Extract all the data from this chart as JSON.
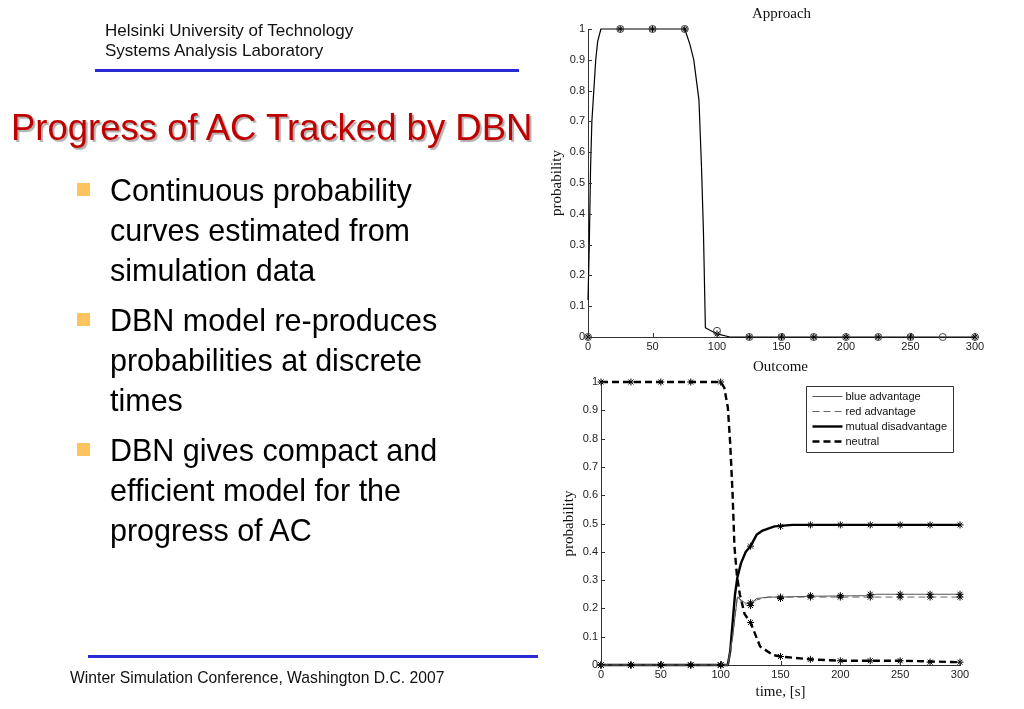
{
  "chart_data": [
    {
      "type": "other",
      "title": "Progress of AC Tracked by DBN",
      "annotations": [
        "Helsinki University of Technology",
        "Systems Analysis Laboratory",
        "Continuous probability curves estimated from simulation data",
        "DBN model re-produces probabilities at discrete times",
        "DBN gives compact and efficient model for the progress of AC",
        "Winter Simulation Conference, Washington D.C. 2007"
      ]
    },
    {
      "type": "line",
      "title": "Approach",
      "ylabel": "probability",
      "xlim": [
        0,
        300
      ],
      "ylim": [
        0,
        1
      ],
      "xticks": [
        0,
        50,
        100,
        150,
        200,
        250,
        300
      ],
      "yticks": [
        0,
        0.1,
        0.2,
        0.3,
        0.4,
        0.5,
        0.6,
        0.7,
        0.8,
        0.9,
        1
      ],
      "series": [
        {
          "type": "line",
          "color": "#000000",
          "marker": "none",
          "line_style": "solid",
          "x": [
            0,
            1,
            2,
            3,
            4.5,
            6,
            7.5,
            10,
            75,
            79,
            82,
            86,
            88,
            89.5,
            91,
            100,
            110,
            300
          ],
          "values": [
            0.12,
            0.3,
            0.55,
            0.7,
            0.8,
            0.9,
            0.96,
            1,
            1,
            0.95,
            0.9,
            0.77,
            0.55,
            0.34,
            0.03,
            0.01,
            0,
            0
          ]
        },
        {
          "type": "scatter",
          "color": "#444444",
          "marker": "circle",
          "x": [
            0,
            25,
            50,
            75,
            100,
            125,
            150,
            175,
            200,
            225,
            250,
            275,
            300
          ],
          "values": [
            0,
            1,
            1,
            1,
            0.02,
            0,
            0,
            0,
            0,
            0,
            0,
            0,
            0
          ]
        },
        {
          "type": "scatter",
          "color": "#000000",
          "marker": "cross",
          "x": [
            0,
            25,
            50,
            75,
            100,
            125,
            150,
            175,
            200,
            225,
            250,
            275,
            300
          ],
          "values": [
            0,
            1,
            1,
            1,
            0.01,
            0,
            0,
            0,
            0,
            0,
            0,
            null,
            0
          ]
        }
      ]
    },
    {
      "type": "line",
      "title": "Outcome",
      "xlabel": "time, [s]",
      "ylabel": "probability",
      "xlim": [
        0,
        300
      ],
      "ylim": [
        0,
        1
      ],
      "xticks": [
        0,
        50,
        100,
        150,
        200,
        250,
        300
      ],
      "yticks": [
        0,
        0.1,
        0.2,
        0.3,
        0.4,
        0.5,
        0.6,
        0.7,
        0.8,
        0.9,
        1
      ],
      "legend": "top right",
      "series": [
        {
          "type": "line",
          "name": "blue advantage",
          "color": "#555555",
          "marker": "none",
          "line_style": "solid",
          "x": [
            0,
            106,
            110,
            114,
            117,
            120,
            125,
            130,
            140,
            150,
            175,
            225,
            230,
            300
          ],
          "values": [
            0,
            0,
            0.1,
            0.24,
            0.23,
            0.22,
            0.215,
            0.235,
            0.24,
            0.24,
            0.243,
            0.245,
            0.25,
            0.25
          ]
        },
        {
          "type": "line",
          "name": "red advantage",
          "color": "#666666",
          "marker": "none",
          "line_style": "dashed",
          "x": [
            0,
            106,
            110,
            114,
            118,
            122,
            125,
            130,
            140,
            150,
            300
          ],
          "values": [
            0,
            0,
            0.1,
            0.245,
            0.22,
            0.21,
            0.21,
            0.23,
            0.24,
            0.24,
            0.24
          ]
        },
        {
          "type": "line",
          "name": "mutual disadvantage",
          "color": "#000000",
          "marker": "none",
          "line_style": "solid",
          "x": [
            0,
            106,
            108,
            110,
            112,
            114,
            117,
            121,
            125,
            130,
            135,
            145,
            160,
            300
          ],
          "values": [
            0,
            0,
            0.05,
            0.15,
            0.25,
            0.31,
            0.36,
            0.4,
            0.42,
            0.46,
            0.475,
            0.49,
            0.495,
            0.495
          ]
        },
        {
          "type": "line",
          "name": "neutral",
          "color": "#000000",
          "marker": "none",
          "line_style": "dashed",
          "x": [
            0,
            100,
            103,
            106,
            108,
            110,
            111.5,
            113.5,
            116,
            120,
            125,
            133,
            144,
            150,
            175,
            200,
            250,
            300
          ],
          "values": [
            1,
            1,
            0.98,
            0.91,
            0.78,
            0.6,
            0.42,
            0.32,
            0.25,
            0.18,
            0.15,
            0.065,
            0.035,
            0.03,
            0.02,
            0.015,
            0.015,
            0.01
          ]
        },
        {
          "type": "scatter",
          "color": "#000000",
          "marker": "cross",
          "x": [
            0,
            25,
            50,
            75,
            100,
            125,
            150,
            175,
            200,
            225,
            250,
            275,
            300
          ],
          "values": [
            0,
            0,
            0,
            0,
            0,
            0.22,
            0.24,
            0.245,
            0.245,
            0.25,
            0.25,
            0.25,
            0.25
          ]
        },
        {
          "type": "scatter",
          "color": "#000000",
          "marker": "cross",
          "x": [
            0,
            25,
            50,
            75,
            100,
            125,
            150,
            175,
            200,
            225,
            250,
            275,
            300
          ],
          "values": [
            0,
            0,
            0,
            0,
            0,
            0.21,
            0.235,
            0.24,
            0.24,
            0.24,
            0.24,
            0.24,
            0.24
          ]
        },
        {
          "type": "scatter",
          "color": "#000000",
          "marker": "cross",
          "x": [
            0,
            25,
            50,
            75,
            100,
            125,
            150,
            175,
            200,
            225,
            250,
            275,
            300
          ],
          "values": [
            0,
            0,
            0,
            0,
            0,
            0.42,
            0.49,
            0.495,
            0.495,
            0.495,
            0.495,
            0.495,
            0.495
          ]
        },
        {
          "type": "scatter",
          "color": "#000000",
          "marker": "cross",
          "x": [
            0,
            25,
            50,
            75,
            100,
            125,
            150,
            175,
            200,
            225,
            250,
            275,
            300
          ],
          "values": [
            1,
            1,
            1,
            1,
            1,
            0.15,
            0.03,
            0.02,
            0.015,
            0.015,
            0.015,
            0.01,
            0.01
          ]
        }
      ]
    }
  ]
}
